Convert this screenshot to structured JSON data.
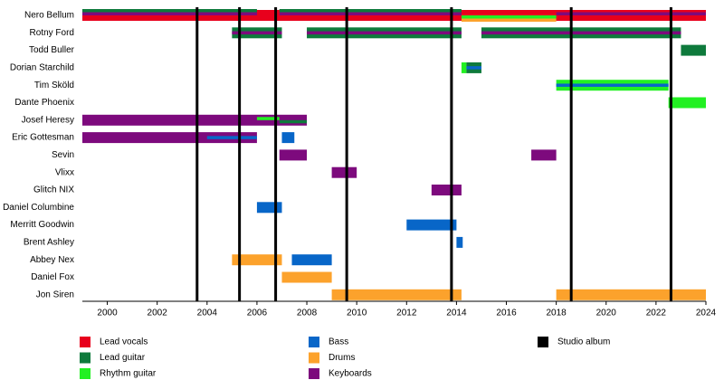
{
  "chart_data": {
    "type": "timeline",
    "xlim": [
      1999,
      2024
    ],
    "xticks": [
      2000,
      2002,
      2004,
      2006,
      2008,
      2010,
      2012,
      2014,
      2016,
      2018,
      2020,
      2022,
      2024
    ],
    "roles": [
      {
        "name": "Lead vocals",
        "color": "#e8001c"
      },
      {
        "name": "Lead guitar",
        "color": "#0e7a3c"
      },
      {
        "name": "Rhythm guitar",
        "color": "#22f022"
      },
      {
        "name": "Bass",
        "color": "#0866c8"
      },
      {
        "name": "Drums",
        "color": "#fca22c"
      },
      {
        "name": "Keyboards",
        "color": "#7d0a7d"
      }
    ],
    "album_legend": {
      "name": "Studio album",
      "color": "#000000"
    },
    "albums": [
      2003.6,
      2005.3,
      2006.75,
      2009.6,
      2013.8,
      2018.6,
      2022.6
    ],
    "members": [
      {
        "name": "Nero Bellum",
        "bars": [
          {
            "role": "Lead vocals",
            "start": 1999,
            "end": 2024
          }
        ],
        "lines": [
          {
            "role": "Lead guitar",
            "start": 1999,
            "end": 2006
          },
          {
            "role": "Lead guitar",
            "start": 2006.9,
            "end": 2014.2
          },
          {
            "role": "Keyboards",
            "start": 1999,
            "end": 2006
          },
          {
            "role": "Keyboards",
            "start": 2006.9,
            "end": 2014.2
          },
          {
            "role": "Keyboards",
            "start": 2018,
            "end": 2024
          },
          {
            "role": "Rhythm guitar",
            "start": 2014.2,
            "end": 2018
          },
          {
            "role": "Drums",
            "start": 2014.2,
            "end": 2018
          }
        ]
      },
      {
        "name": "Rotny Ford",
        "bars": [
          {
            "role": "Lead guitar",
            "start": 2005,
            "end": 2007
          },
          {
            "role": "Lead guitar",
            "start": 2008,
            "end": 2014.2
          },
          {
            "role": "Lead guitar",
            "start": 2015,
            "end": 2023
          }
        ],
        "lines": [
          {
            "role": "Keyboards",
            "start": 2005,
            "end": 2007
          },
          {
            "role": "Keyboards",
            "start": 2008,
            "end": 2014.2
          },
          {
            "role": "Keyboards",
            "start": 2015,
            "end": 2023
          }
        ]
      },
      {
        "name": "Todd Buller",
        "bars": [
          {
            "role": "Lead guitar",
            "start": 2023,
            "end": 2024
          }
        ],
        "lines": []
      },
      {
        "name": "Dorian Starchild",
        "bars": [
          {
            "role": "Rhythm guitar",
            "start": 2014.2,
            "end": 2014.4
          },
          {
            "role": "Lead guitar",
            "start": 2014.4,
            "end": 2015
          }
        ],
        "lines": [
          {
            "role": "Bass",
            "start": 2014.4,
            "end": 2015
          }
        ]
      },
      {
        "name": "Tim Sköld",
        "bars": [
          {
            "role": "Rhythm guitar",
            "start": 2018,
            "end": 2022.5
          }
        ],
        "lines": [
          {
            "role": "Bass",
            "start": 2018,
            "end": 2022.5
          }
        ]
      },
      {
        "name": "Dante Phoenix",
        "bars": [
          {
            "role": "Rhythm guitar",
            "start": 2022.5,
            "end": 2024
          }
        ],
        "lines": []
      },
      {
        "name": "Josef Heresy",
        "bars": [
          {
            "role": "Keyboards",
            "start": 1999,
            "end": 2008
          }
        ],
        "lines": [
          {
            "role": "Rhythm guitar",
            "start": 2006,
            "end": 2006.9
          },
          {
            "role": "Lead guitar",
            "start": 2006.9,
            "end": 2008
          }
        ]
      },
      {
        "name": "Eric Gottesman",
        "bars": [
          {
            "role": "Keyboards",
            "start": 1999,
            "end": 2006
          },
          {
            "role": "Bass",
            "start": 2007,
            "end": 2007.5
          }
        ],
        "lines": [
          {
            "role": "Bass",
            "start": 2004,
            "end": 2006
          }
        ]
      },
      {
        "name": "Sevin",
        "bars": [
          {
            "role": "Keyboards",
            "start": 2006.9,
            "end": 2008
          },
          {
            "role": "Keyboards",
            "start": 2017,
            "end": 2018
          }
        ],
        "lines": []
      },
      {
        "name": "Vlixx",
        "bars": [
          {
            "role": "Keyboards",
            "start": 2009,
            "end": 2010
          }
        ],
        "lines": []
      },
      {
        "name": "Glitch NIX",
        "bars": [
          {
            "role": "Keyboards",
            "start": 2013,
            "end": 2014.2
          }
        ],
        "lines": []
      },
      {
        "name": "Daniel Columbine",
        "bars": [
          {
            "role": "Bass",
            "start": 2006,
            "end": 2007
          }
        ],
        "lines": []
      },
      {
        "name": "Merritt Goodwin",
        "bars": [
          {
            "role": "Bass",
            "start": 2012,
            "end": 2014
          }
        ],
        "lines": []
      },
      {
        "name": "Brent Ashley",
        "bars": [
          {
            "role": "Bass",
            "start": 2014,
            "end": 2014.25
          }
        ],
        "lines": []
      },
      {
        "name": "Abbey Nex",
        "bars": [
          {
            "role": "Drums",
            "start": 2005,
            "end": 2007
          },
          {
            "role": "Bass",
            "start": 2007.4,
            "end": 2009
          }
        ],
        "lines": []
      },
      {
        "name": "Daniel Fox",
        "bars": [
          {
            "role": "Drums",
            "start": 2007,
            "end": 2009
          }
        ],
        "lines": []
      },
      {
        "name": "Jon Siren",
        "bars": [
          {
            "role": "Drums",
            "start": 2009,
            "end": 2014.2
          },
          {
            "role": "Drums",
            "start": 2018,
            "end": 2024
          }
        ],
        "lines": []
      }
    ]
  }
}
